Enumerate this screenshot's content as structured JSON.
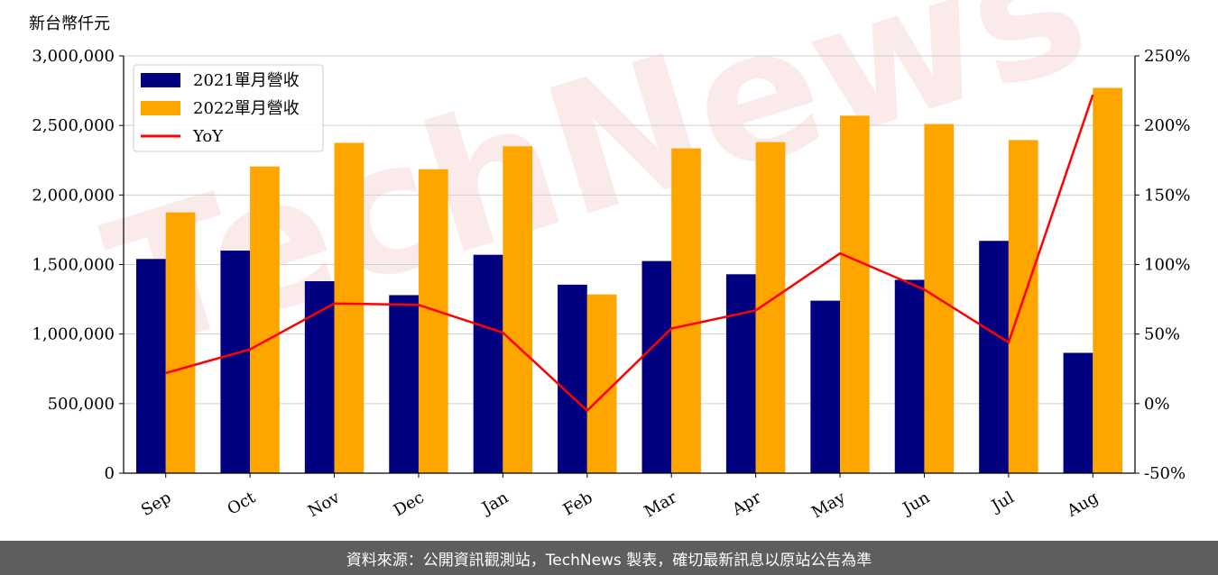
{
  "chart_data": {
    "type": "bar",
    "y_unit_label": "新台幣仟元",
    "categories": [
      "Sep",
      "Oct",
      "Nov",
      "Dec",
      "Jan",
      "Feb",
      "Mar",
      "Apr",
      "May",
      "Jun",
      "Jul",
      "Aug"
    ],
    "series": [
      {
        "name": "2021單月營收",
        "type": "bar",
        "axis": "left",
        "color": "#000080",
        "values": [
          1540000,
          1600000,
          1380000,
          1280000,
          1570000,
          1355000,
          1525000,
          1430000,
          1240000,
          1390000,
          1670000,
          865000
        ]
      },
      {
        "name": "2022單月營收",
        "type": "bar",
        "axis": "left",
        "color": "#ffa500",
        "values": [
          1875000,
          2205000,
          2375000,
          2185000,
          2350000,
          1285000,
          2335000,
          2380000,
          2570000,
          2510000,
          2395000,
          2770000
        ]
      },
      {
        "name": "YoY",
        "type": "line",
        "axis": "right",
        "color": "#ff0000",
        "values": [
          22,
          39,
          72,
          71,
          51,
          -5,
          54,
          67,
          108,
          82,
          44,
          222
        ]
      }
    ],
    "ylim": [
      0,
      3000000
    ],
    "y_ticks": [
      "0",
      "500,000",
      "1,000,000",
      "1,500,000",
      "2,000,000",
      "2,500,000",
      "3,000,000"
    ],
    "y2lim": [
      -50,
      250
    ],
    "y2_ticks": [
      "-50%",
      "0%",
      "50%",
      "100%",
      "150%",
      "200%",
      "250%"
    ],
    "grid": "horizontal",
    "legend_position": "top-left"
  },
  "watermark": "TechNews",
  "footer": {
    "source_text": "資料來源：公開資訊觀測站，TechNews 製表，確切最新訊息以原站公告為準"
  }
}
